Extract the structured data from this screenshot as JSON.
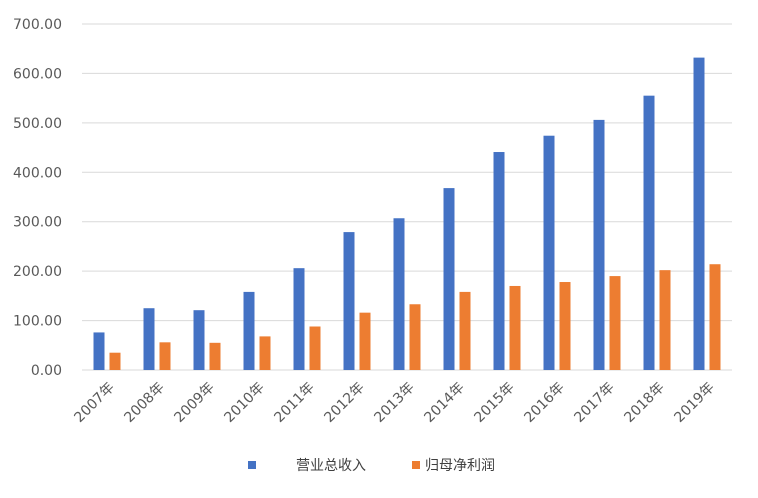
{
  "chart_data": {
    "type": "bar",
    "categories": [
      "2007年",
      "2008年",
      "2009年",
      "2010年",
      "2011年",
      "2012年",
      "2013年",
      "2014年",
      "2015年",
      "2016年",
      "2017年",
      "2018年",
      "2019年"
    ],
    "series": [
      {
        "name": "营业总收入",
        "color": "#4472C4",
        "values": [
          76,
          125,
          121,
          158,
          206,
          279,
          307,
          368,
          441,
          474,
          506,
          555,
          632
        ]
      },
      {
        "name": "归母净利润",
        "color": "#ED7D31",
        "values": [
          35,
          56,
          55,
          68,
          88,
          116,
          133,
          158,
          170,
          178,
          190,
          202,
          214
        ]
      }
    ],
    "title": "",
    "xlabel": "",
    "ylabel": "",
    "ylim": [
      0,
      700
    ],
    "yticks": [
      "0.00",
      "100.00",
      "200.00",
      "300.00",
      "400.00",
      "500.00",
      "600.00",
      "700.00"
    ],
    "grid": true,
    "legend": "bottom"
  }
}
